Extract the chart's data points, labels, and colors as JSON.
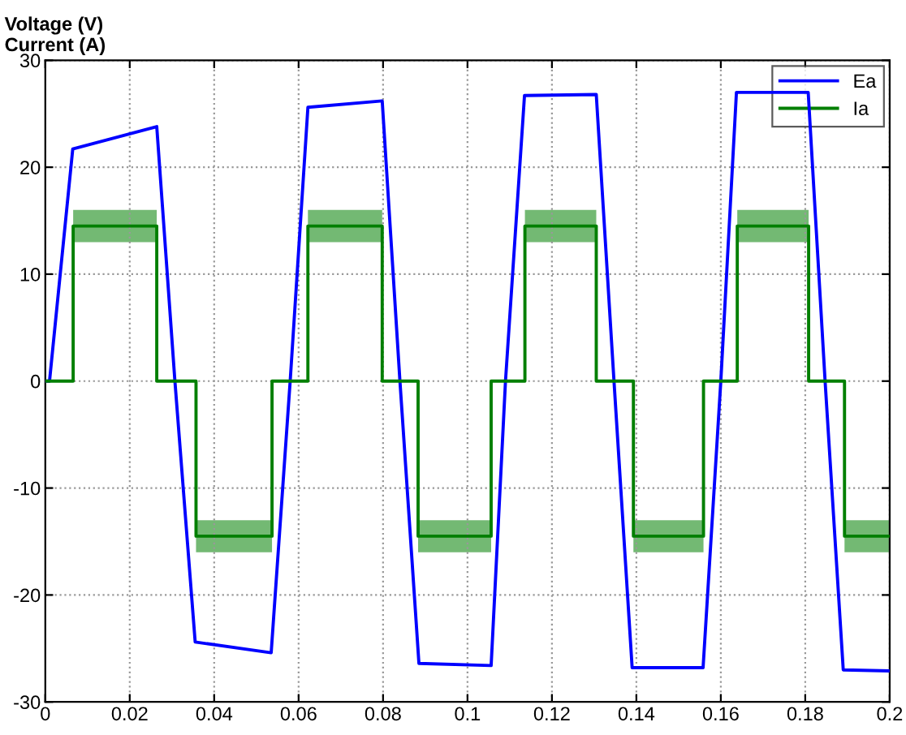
{
  "chart_data": {
    "type": "line",
    "ylabel": "Voltage (V)\nCurrent (A)",
    "xlim": [
      0,
      0.2
    ],
    "ylim": [
      -30,
      30
    ],
    "xticks": [
      0,
      0.02,
      0.04,
      0.06,
      0.08,
      0.1,
      0.12,
      0.14,
      0.16,
      0.18,
      0.2
    ],
    "yticks": [
      -30,
      -20,
      -10,
      0,
      10,
      20,
      30
    ],
    "grid": true,
    "legend": "top right",
    "marker": "none",
    "line_style": "solid",
    "series": [
      {
        "name": "Ea",
        "color": "#0000ff",
        "x": [
          0,
          0.001,
          0.0065,
          0.0264,
          0.0307,
          0.0355,
          0.0535,
          0.058,
          0.0622,
          0.0798,
          0.084,
          0.0885,
          0.1056,
          0.109,
          0.1135,
          0.1305,
          0.1347,
          0.139,
          0.1558,
          0.16,
          0.1637,
          0.1807,
          0.1847,
          0.189,
          0.2
        ],
        "values": [
          0,
          0,
          21.7,
          23.8,
          0,
          -24.4,
          -25.4,
          0,
          25.6,
          26.2,
          0,
          -26.4,
          -26.6,
          0,
          26.7,
          26.8,
          0,
          -26.8,
          -26.8,
          0,
          27,
          27,
          0,
          -27,
          -27.1
        ]
      },
      {
        "name": "Ia",
        "color": "#007f00",
        "x": [
          0,
          0.0066,
          0.0066,
          0.0264,
          0.0264,
          0.0357,
          0.0357,
          0.0537,
          0.0537,
          0.0622,
          0.0622,
          0.0798,
          0.0798,
          0.0883,
          0.0883,
          0.1056,
          0.1056,
          0.1136,
          0.1136,
          0.1305,
          0.1305,
          0.1393,
          0.1393,
          0.1559,
          0.1559,
          0.1639,
          0.1639,
          0.1808,
          0.1808,
          0.1893,
          0.1893,
          0.2
        ],
        "values": [
          0,
          0,
          14.5,
          14.5,
          0,
          0,
          -14.5,
          -14.5,
          0,
          0,
          14.5,
          14.5,
          0,
          0,
          -14.5,
          -14.5,
          0,
          0,
          14.5,
          14.5,
          0,
          0,
          -14.5,
          -14.5,
          0,
          0,
          14.5,
          14.5,
          0,
          0,
          -14.5,
          -14.5
        ],
        "lower": [
          0,
          0,
          13,
          13,
          0,
          0,
          -16,
          -16,
          0,
          0,
          13,
          13,
          0,
          0,
          -16,
          -16,
          0,
          0,
          13,
          13,
          0,
          0,
          -16,
          -16,
          0,
          0,
          13,
          13,
          0,
          0,
          -16,
          -16
        ],
        "upper": [
          0,
          0,
          16,
          16,
          0,
          0,
          -13,
          -13,
          0,
          0,
          16,
          16,
          0,
          0,
          -13,
          -13,
          0,
          0,
          16,
          16,
          0,
          0,
          -13,
          -13,
          0,
          0,
          16,
          16,
          0,
          0,
          -13,
          -13
        ]
      }
    ]
  }
}
